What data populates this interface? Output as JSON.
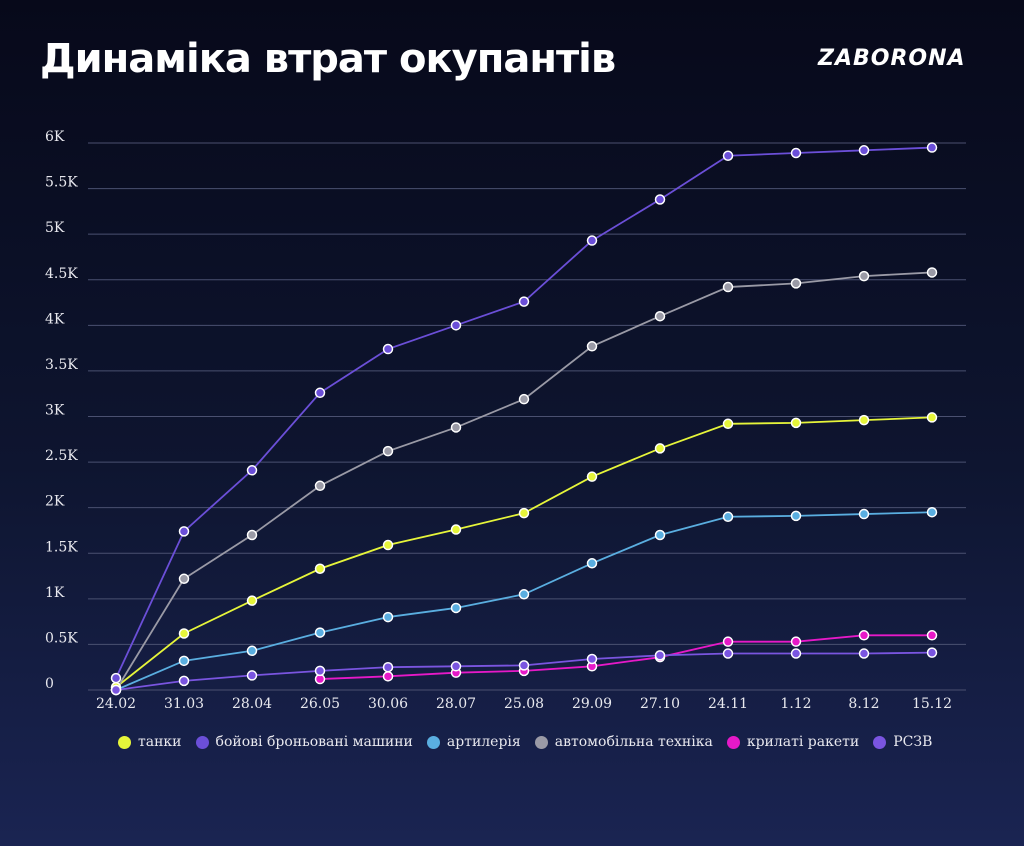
{
  "title": "Динаміка втрат окупантів",
  "logo": "ZABORONA",
  "chart_data": {
    "type": "line",
    "categories": [
      "24.02",
      "31.03",
      "28.04",
      "26.05",
      "30.06",
      "28.07",
      "25.08",
      "29.09",
      "27.10",
      "24.11",
      "1.12",
      "8.12",
      "15.12"
    ],
    "ylim": [
      0,
      6000
    ],
    "yticks": [
      {
        "value": 0,
        "label": "0"
      },
      {
        "value": 500,
        "label": "0.5K"
      },
      {
        "value": 1000,
        "label": "1K"
      },
      {
        "value": 1500,
        "label": "1.5K"
      },
      {
        "value": 2000,
        "label": "2K"
      },
      {
        "value": 2500,
        "label": "2.5K"
      },
      {
        "value": 3000,
        "label": "3K"
      },
      {
        "value": 3500,
        "label": "3.5K"
      },
      {
        "value": 4000,
        "label": "4K"
      },
      {
        "value": 4500,
        "label": "4.5K"
      },
      {
        "value": 5000,
        "label": "5K"
      },
      {
        "value": 5500,
        "label": "5.5K"
      },
      {
        "value": 6000,
        "label": "6K"
      }
    ],
    "grid": true,
    "legend_position": "bottom",
    "series": [
      {
        "name": "танки",
        "color": "#e6f53a",
        "values": [
          30,
          620,
          980,
          1330,
          1590,
          1760,
          1940,
          2340,
          2650,
          2920,
          2930,
          2960,
          2990
        ]
      },
      {
        "name": "бойові броньовані машини",
        "color": "#6b4fd8",
        "values": [
          130,
          1740,
          2410,
          3260,
          3740,
          4000,
          4260,
          4930,
          5380,
          5860,
          5890,
          5920,
          5950
        ]
      },
      {
        "name": "артилерія",
        "color": "#5aaee0",
        "values": [
          0,
          320,
          430,
          630,
          800,
          900,
          1050,
          1390,
          1700,
          1900,
          1910,
          1930,
          1950
        ]
      },
      {
        "name": "автомобільна техніка",
        "color": "#9a9aa6",
        "values": [
          0,
          1220,
          1700,
          2240,
          2620,
          2880,
          3190,
          3770,
          4100,
          4420,
          4460,
          4540,
          4580
        ]
      },
      {
        "name": "крилаті ракети",
        "color": "#e619c8",
        "values": [
          null,
          null,
          null,
          120,
          150,
          190,
          210,
          260,
          360,
          530,
          530,
          600,
          600
        ]
      },
      {
        "name": "РСЗВ",
        "color": "#7a55e0",
        "values": [
          0,
          100,
          160,
          210,
          250,
          260,
          270,
          340,
          380,
          400,
          400,
          400,
          410
        ]
      }
    ]
  }
}
